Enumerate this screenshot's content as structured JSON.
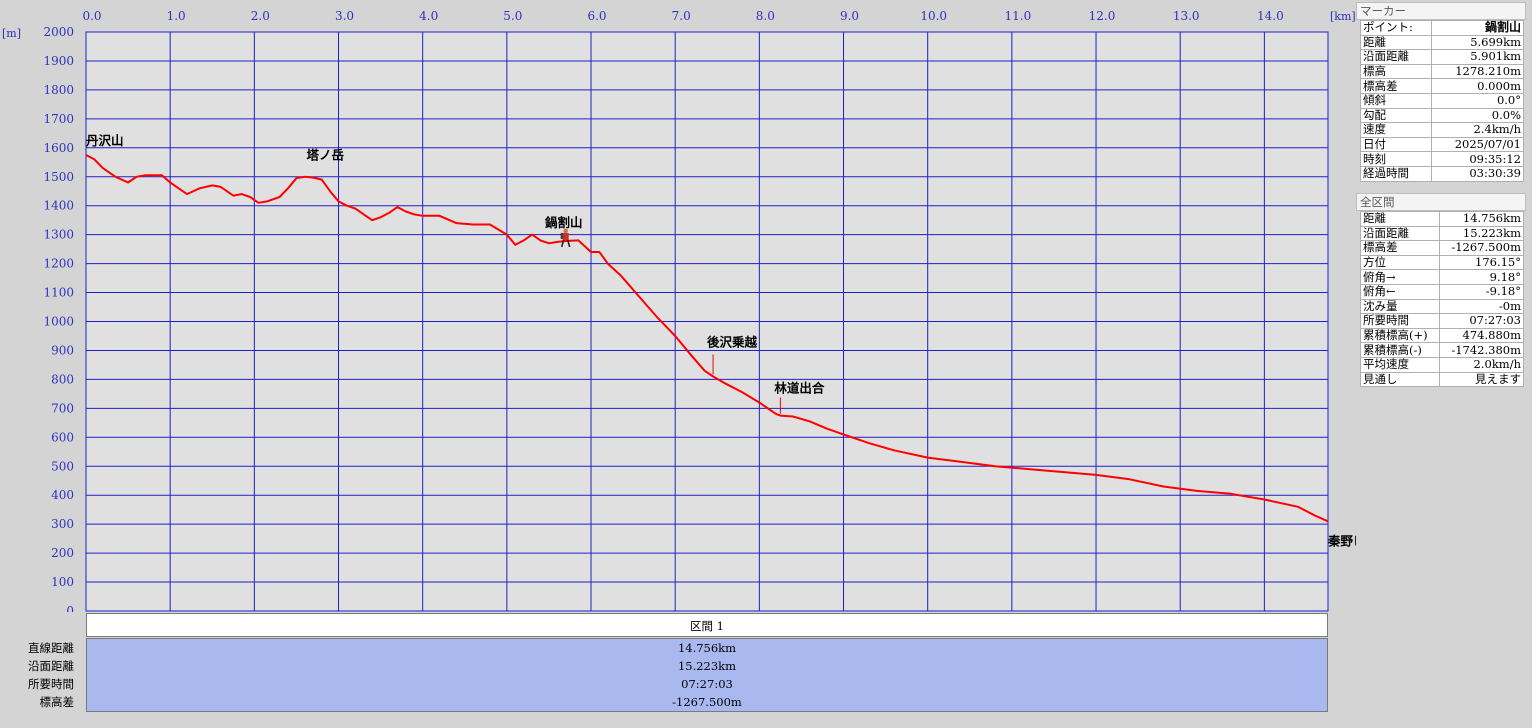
{
  "chart_data": {
    "type": "line",
    "x_unit": "[km]",
    "y_unit": "[m]",
    "xlim": [
      0,
      14.756
    ],
    "ylim": [
      0,
      2000
    ],
    "x_ticks": [
      "0.0",
      "1.0",
      "2.0",
      "3.0",
      "4.0",
      "5.0",
      "6.0",
      "7.0",
      "8.0",
      "9.0",
      "10.0",
      "11.0",
      "12.0",
      "13.0",
      "14.0"
    ],
    "y_ticks": [
      "2000",
      "1900",
      "1800",
      "1700",
      "1600",
      "1500",
      "1400",
      "1300",
      "1200",
      "1100",
      "1000",
      "900",
      "800",
      "700",
      "600",
      "500",
      "400",
      "300",
      "200",
      "100",
      "0"
    ],
    "grid": true,
    "line_color": "#ff0000",
    "plot_bg": "#e0e0e0",
    "grid_color": "#2020c8",
    "series": [
      {
        "x": [
          0,
          0.1,
          0.2,
          0.35,
          0.5,
          0.6,
          0.7,
          0.9,
          1.0,
          1.1,
          1.2,
          1.35,
          1.5,
          1.6,
          1.75,
          1.85,
          1.95,
          2.05,
          2.15,
          2.3,
          2.4,
          2.5,
          2.6,
          2.7,
          2.8,
          2.9,
          3.0,
          3.1,
          3.2,
          3.3,
          3.4,
          3.5,
          3.6,
          3.7,
          3.8,
          3.9,
          4.0,
          4.2,
          4.4,
          4.6,
          4.8,
          5.0,
          5.1,
          5.2,
          5.3,
          5.4,
          5.5,
          5.6,
          5.7,
          5.85,
          6.0,
          6.1,
          6.2,
          6.35,
          6.5,
          6.65,
          6.8,
          7.0,
          7.2,
          7.35,
          7.45,
          7.6,
          7.8,
          8.0,
          8.2,
          8.25,
          8.4,
          8.6,
          8.8,
          9.0,
          9.3,
          9.6,
          10.0,
          10.4,
          10.8,
          11.2,
          11.6,
          12.0,
          12.4,
          12.8,
          13.2,
          13.6,
          14.0,
          14.4,
          14.6,
          14.756
        ],
        "y": [
          1575,
          1560,
          1530,
          1500,
          1480,
          1500,
          1505,
          1505,
          1480,
          1460,
          1440,
          1460,
          1470,
          1465,
          1435,
          1440,
          1430,
          1410,
          1415,
          1430,
          1460,
          1495,
          1500,
          1497,
          1490,
          1450,
          1415,
          1400,
          1390,
          1370,
          1350,
          1360,
          1375,
          1395,
          1380,
          1370,
          1365,
          1365,
          1340,
          1335,
          1335,
          1300,
          1265,
          1280,
          1300,
          1280,
          1270,
          1275,
          1278,
          1280,
          1240,
          1240,
          1200,
          1160,
          1110,
          1060,
          1010,
          950,
          880,
          830,
          810,
          785,
          755,
          720,
          680,
          675,
          672,
          655,
          630,
          610,
          580,
          555,
          530,
          515,
          500,
          490,
          480,
          470,
          455,
          430,
          415,
          405,
          385,
          360,
          330,
          310
        ]
      }
    ],
    "annotations": [
      {
        "label": "丹沢山",
        "x": 0.0,
        "y": 1575
      },
      {
        "label": "塔ノ岳",
        "x": 2.7,
        "y": 1497
      },
      {
        "label": "鍋割山",
        "x": 5.7,
        "y": 1278
      },
      {
        "label": "後沢乗越",
        "x": 7.45,
        "y": 810
      },
      {
        "label": "林道出合",
        "x": 8.25,
        "y": 675
      },
      {
        "label": "秦野ビジターセンター",
        "x": 14.756,
        "y": 310
      }
    ],
    "current_marker": {
      "x": 5.699,
      "y": 1278.21
    }
  },
  "marker_panel": {
    "title": "マーカー",
    "point_label": "ポイント:",
    "point_value": "鍋割山",
    "rows": [
      {
        "label": "距離",
        "value": "5.699km"
      },
      {
        "label": "沿面距離",
        "value": "5.901km"
      },
      {
        "label": "標高",
        "value": "1278.210m"
      },
      {
        "label": "標高差",
        "value": "0.000m"
      },
      {
        "label": "傾斜",
        "value": "0.0°"
      },
      {
        "label": "勾配",
        "value": "0.0%"
      },
      {
        "label": "速度",
        "value": "2.4km/h"
      },
      {
        "label": "日付",
        "value": "2025/07/01"
      },
      {
        "label": "時刻",
        "value": "09:35:12"
      },
      {
        "label": "経過時間",
        "value": "03:30:39"
      }
    ]
  },
  "total_panel": {
    "title": "全区間",
    "rows": [
      {
        "label": "距離",
        "value": "14.756km"
      },
      {
        "label": "沿面距離",
        "value": "15.223km"
      },
      {
        "label": "標高差",
        "value": "-1267.500m"
      },
      {
        "label": "方位",
        "value": "176.15°"
      },
      {
        "label": "俯角→",
        "value": "9.18°"
      },
      {
        "label": "俯角←",
        "value": "-9.18°"
      },
      {
        "label": "沈み量",
        "value": "-0m"
      },
      {
        "label": "所要時間",
        "value": "07:27:03"
      },
      {
        "label": "累積標高(+)",
        "value": "474.880m"
      },
      {
        "label": "累積標高(-)",
        "value": "-1742.380m"
      },
      {
        "label": "平均速度",
        "value": "2.0km/h"
      },
      {
        "label": "見通し",
        "value": "見えます"
      }
    ]
  },
  "segment_summary": {
    "header": "区間 1",
    "rows": [
      {
        "label": "直線距離",
        "value": "14.756km"
      },
      {
        "label": "沿面距離",
        "value": "15.223km"
      },
      {
        "label": "所要時間",
        "value": "07:27:03"
      },
      {
        "label": "標高差",
        "value": "-1267.500m"
      }
    ]
  }
}
